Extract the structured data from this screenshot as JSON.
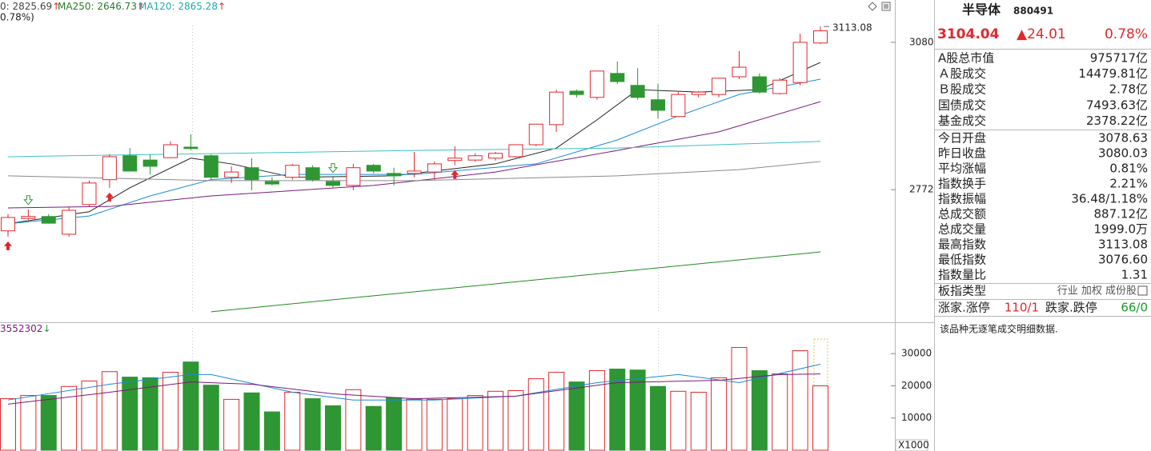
{
  "chart_data": [
    {
      "type": "candlestick",
      "header": [
        {
          "text": "0: 2825.69",
          "arrow": "↑",
          "color": "#444444"
        },
        {
          "text": "MA250: 2646.73",
          "arrow": "↑",
          "color": "#2a7a2a"
        },
        {
          "text": "MA120: 2865.28",
          "arrow": "↑",
          "color": "#20a8b0"
        }
      ],
      "subheader": "0.78%)",
      "ylim": [
        2500,
        3115
      ],
      "yticks": [
        2772,
        3080
      ],
      "up_color": "#e0282e",
      "down_color": "#2e9632",
      "open": [
        2686,
        2712,
        2716,
        2679,
        2741,
        2793,
        2843,
        2834,
        2839,
        2861,
        2843,
        2798,
        2818,
        2789,
        2798,
        2818,
        2789,
        2781,
        2823,
        2806,
        2806,
        2809,
        2833,
        2834,
        2838,
        2841,
        2866,
        2908,
        2978,
        2965,
        3015,
        2990,
        2960,
        2925,
        2971,
        2971,
        3008,
        3008,
        2973,
        2996,
        3078.63
      ],
      "high": [
        2721,
        2731,
        2721,
        2737,
        2791,
        2846,
        2859,
        2846,
        2873,
        2888,
        2846,
        2821,
        2838,
        2798,
        2826,
        2823,
        2798,
        2826,
        2826,
        2818,
        2851,
        2831,
        2863,
        2848,
        2851,
        2866,
        2909,
        2981,
        2981,
        3020,
        3040,
        3026,
        2993,
        2976,
        2978,
        3005,
        3062,
        3015,
        3005,
        3098,
        3113.08
      ],
      "low": [
        2674,
        2709,
        2701,
        2674,
        2737,
        2776,
        2811,
        2804,
        2838,
        2854,
        2793,
        2786,
        2771,
        2781,
        2793,
        2789,
        2776,
        2771,
        2806,
        2781,
        2798,
        2793,
        2823,
        2831,
        2833,
        2839,
        2863,
        2893,
        2965,
        2960,
        2993,
        2960,
        2921,
        2925,
        2965,
        2965,
        3003,
        2973,
        2971,
        2990,
        3076.6
      ],
      "close": [
        2714,
        2716,
        2702,
        2729,
        2786,
        2841,
        2811,
        2821,
        2866,
        2858,
        2798,
        2809,
        2793,
        2784,
        2823,
        2793,
        2781,
        2818,
        2811,
        2801,
        2811,
        2826,
        2838,
        2843,
        2848,
        2866,
        2909,
        2976,
        2971,
        3020,
        2998,
        2965,
        2938,
        2971,
        2976,
        3005,
        3028,
        2976,
        3001,
        3080,
        3104.04
      ],
      "series": [
        {
          "color": "#222222",
          "x": [
            0,
            4,
            6,
            9,
            11,
            14,
            19,
            24,
            27,
            29,
            31,
            34,
            37,
            40
          ],
          "values": [
            2701,
            2726,
            2776,
            2838,
            2826,
            2798,
            2801,
            2826,
            2859,
            2918,
            2981,
            2976,
            2981,
            3038
          ]
        },
        {
          "color": "#1c8ad6",
          "x": [
            0,
            4,
            7,
            10,
            14,
            20,
            26,
            30,
            33,
            36,
            40
          ],
          "values": [
            2701,
            2717,
            2759,
            2793,
            2804,
            2804,
            2826,
            2876,
            2926,
            2971,
            3003
          ]
        },
        {
          "color": "#7a1a7a",
          "x": [
            0,
            5,
            10,
            18,
            24,
            30,
            35,
            40
          ],
          "values": [
            2734,
            2737,
            2759,
            2781,
            2809,
            2854,
            2893,
            2956
          ]
        },
        {
          "color": "#8a8a8a",
          "x": [
            0,
            10,
            20,
            30,
            36,
            40
          ],
          "values": [
            2801,
            2791,
            2791,
            2801,
            2814,
            2831
          ]
        },
        {
          "color": "#3cc0c8",
          "x": [
            0,
            20,
            30,
            40
          ],
          "values": [
            2841,
            2854,
            2859,
            2873
          ]
        },
        {
          "color": "#1f8a1f",
          "x": [
            10,
            40
          ],
          "values": [
            2517,
            2642
          ]
        }
      ],
      "buy_signals": [
        0,
        5,
        22
      ],
      "sell_signals": [
        1,
        16
      ],
      "buy_color": "#e0282e",
      "sell_color": "#2e9632"
    },
    {
      "type": "bar",
      "header": {
        "text": "3552302",
        "arrow": "↓"
      },
      "unit": "X1000",
      "ylim": [
        0,
        38000
      ],
      "yticks": [
        10000,
        20000,
        30000
      ],
      "values": [
        16000,
        17000,
        17000,
        19800,
        21500,
        24400,
        22700,
        22500,
        24200,
        27400,
        20200,
        15800,
        17800,
        11900,
        18000,
        16000,
        13800,
        18800,
        13600,
        16300,
        15800,
        15800,
        16000,
        17000,
        18300,
        18500,
        22200,
        24200,
        21200,
        24700,
        25200,
        24900,
        19800,
        18300,
        18000,
        22500,
        31900,
        24700,
        23700,
        30900,
        20000
      ],
      "series": [
        {
          "color": "#1c8ad6",
          "x": [
            0,
            5,
            9,
            10,
            14,
            17,
            21,
            25,
            29,
            33,
            36,
            40
          ],
          "values": [
            15600,
            20500,
            23500,
            23500,
            18000,
            15600,
            15600,
            16800,
            21000,
            23500,
            21000,
            26700
          ]
        },
        {
          "color": "#7a1a7a",
          "x": [
            0,
            5,
            9,
            12,
            16,
            20,
            25,
            30,
            35,
            38,
            40
          ],
          "values": [
            14300,
            18000,
            21200,
            20500,
            17500,
            16000,
            16800,
            21000,
            21700,
            23500,
            23700
          ]
        }
      ]
    }
  ],
  "panel": {
    "name": "半导体",
    "code": "880491",
    "price": "3104.04",
    "change": "▲24.01",
    "change_pct": "0.78%",
    "market_rows": [
      {
        "label": "A股总市值",
        "value": "975717亿"
      },
      {
        "label": "Ａ股成交",
        "value": "14479.81亿"
      },
      {
        "label": "Ｂ股成交",
        "value": "2.78亿"
      },
      {
        "label": "国债成交",
        "value": "7493.63亿"
      },
      {
        "label": "基金成交",
        "value": "2378.22亿"
      }
    ],
    "stat_rows": [
      {
        "label": "今日开盘",
        "value": "3078.63",
        "color": "#1a9a2a"
      },
      {
        "label": "昨日收盘",
        "value": "3080.03",
        "color": "#222222"
      },
      {
        "label": "平均涨幅",
        "value": "0.81%",
        "color": "#e0282e"
      },
      {
        "label": "指数换手",
        "value": "2.21%",
        "color": "#222222"
      },
      {
        "label": "指数振幅",
        "value": "36.48/1.18%",
        "color": "#222222"
      },
      {
        "label": "总成交额",
        "value": "887.12亿",
        "color": "#222222"
      },
      {
        "label": "总成交量",
        "value": "1999.0万",
        "color": "#222222"
      },
      {
        "label": "最高指数",
        "value": "3113.08",
        "color": "#e0282e"
      },
      {
        "label": "最低指数",
        "value": "3076.60",
        "color": "#1a9a2a"
      },
      {
        "label": "指数量比",
        "value": "1.31",
        "color": "#e0282e"
      }
    ],
    "board": {
      "label": "板指类型",
      "value": "行业 加权 成份股"
    },
    "breadth": {
      "up_label": "涨家.涨停",
      "up_value": "110/1",
      "down_label": "跌家.跌停",
      "down_value": "66/0"
    },
    "note": "该品种无逐笔成交明细数据."
  }
}
